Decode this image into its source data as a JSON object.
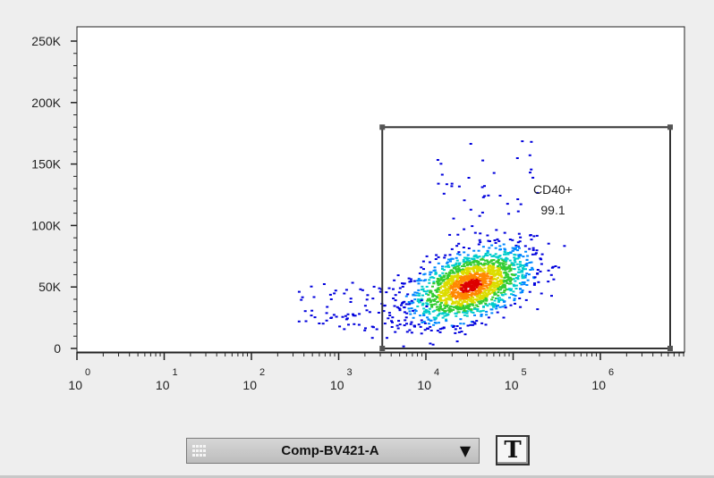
{
  "chart_data": {
    "type": "heatmap",
    "subtype": "flow-cytometry-density-scatter",
    "title": "",
    "xlabel": "Comp-BV421-A",
    "ylabel": "",
    "x_scale": "biexponential (log-like)",
    "x_ticks": [
      {
        "base": "10",
        "exp": "0"
      },
      {
        "base": "10",
        "exp": "1"
      },
      {
        "base": "10",
        "exp": "2"
      },
      {
        "base": "10",
        "exp": "3"
      },
      {
        "base": "10",
        "exp": "4"
      },
      {
        "base": "10",
        "exp": "5"
      },
      {
        "base": "10",
        "exp": "6"
      }
    ],
    "x_tick_values": [
      1,
      10,
      100,
      1000,
      10000,
      100000,
      1000000
    ],
    "xlim_decades": [
      -0.2,
      6.8
    ],
    "y_scale": "linear",
    "ylim": [
      -2000,
      262144
    ],
    "y_ticks": [
      0,
      50000,
      100000,
      150000,
      200000,
      250000
    ],
    "y_tick_labels": [
      "0",
      "50K",
      "100K",
      "150K",
      "200K",
      "250K"
    ],
    "grid": false,
    "population": {
      "center_log10_x": 4.5,
      "center_y": 52000,
      "spread_log10_x": 0.34,
      "spread_y": 15000,
      "tilt": 0.45,
      "color_scale": [
        "#0000dd",
        "#0088ff",
        "#00cccc",
        "#33cc33",
        "#dddd00",
        "#ff8800",
        "#dd0000"
      ]
    },
    "gate": {
      "name": "CD40+",
      "percent": "99.1",
      "x_min_log10": 3.5,
      "x_max_log10": 6.8,
      "y_min": 0,
      "y_max": 180000
    }
  },
  "controls": {
    "x_axis_parameter": "Comp-BV421-A",
    "dropdown_arrow": "▼",
    "text_tool_label": "T"
  },
  "colors": {
    "plot_background": "#ffffff",
    "page_background": "#eeeeee",
    "axis": "#222222",
    "gate_line": "#333333"
  }
}
